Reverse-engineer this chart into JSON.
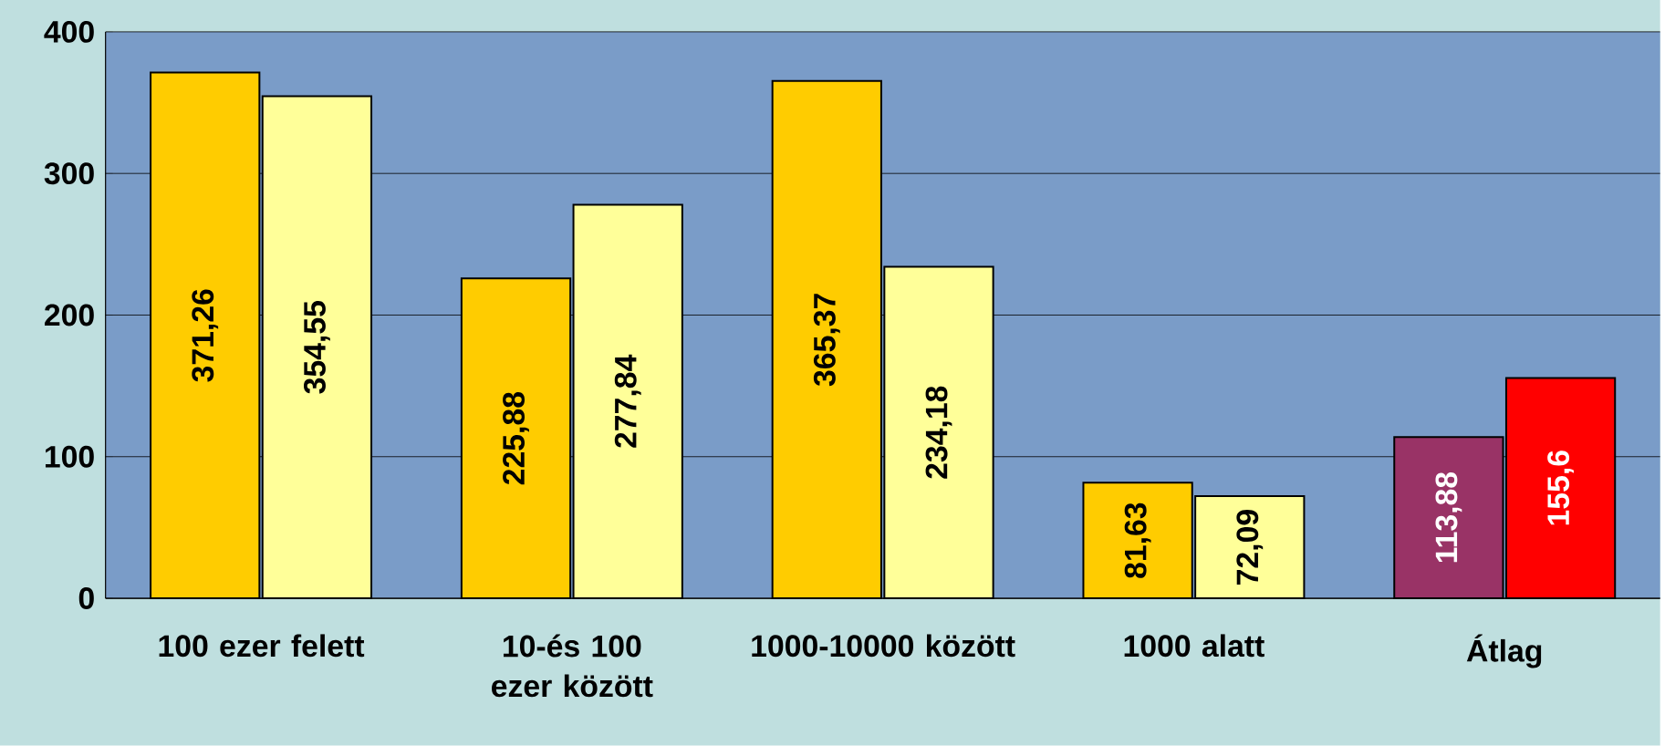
{
  "chart_data": {
    "type": "bar",
    "categories": [
      "100 ezer felett",
      "10-és 100 ezer között",
      "1000-10000 között",
      "1000 alatt",
      "Átlag"
    ],
    "series": [
      {
        "colors": [
          "#ffcc00",
          "#ffcc00",
          "#ffcc00",
          "#ffcc00",
          "#993366"
        ],
        "values": [
          371.26,
          225.88,
          365.37,
          81.63,
          113.88
        ],
        "value_labels": [
          "371,26",
          "225,88",
          "365,37",
          "81,63",
          "113,88"
        ]
      },
      {
        "colors": [
          "#ffff99",
          "#ffff99",
          "#ffff99",
          "#ffff99",
          "#ff0000"
        ],
        "values": [
          354.55,
          277.84,
          234.18,
          72.09,
          155.6
        ],
        "value_labels": [
          "354,55",
          "277,84",
          "234,18",
          "72,09",
          "155,6"
        ]
      }
    ],
    "ylim": [
      0,
      400
    ],
    "yticks": [
      0,
      100,
      200,
      300,
      400
    ],
    "grid": "y"
  }
}
